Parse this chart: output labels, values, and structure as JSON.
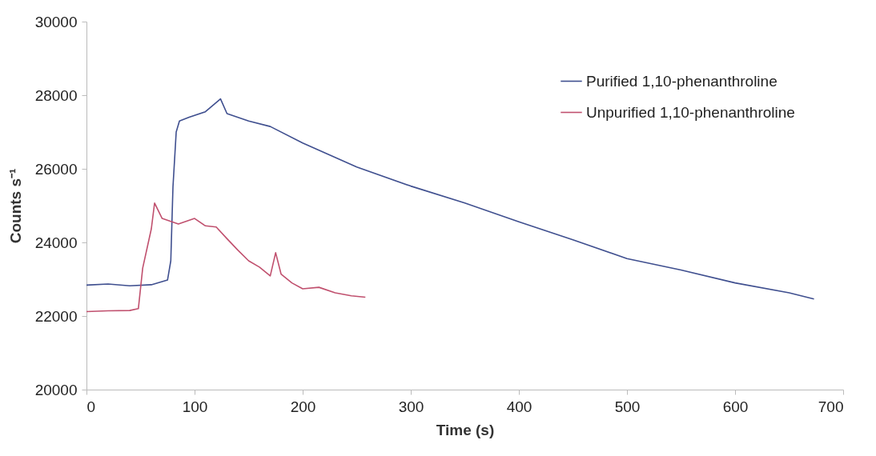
{
  "chart_data": {
    "type": "line",
    "xlabel": "Time (s)",
    "ylabel": "Counts s⁻¹",
    "xlim": [
      0,
      700
    ],
    "xticks": [
      0,
      100,
      200,
      300,
      400,
      500,
      600,
      700
    ],
    "ylim": [
      20000,
      30000
    ],
    "yticks": [
      20000,
      22000,
      24000,
      26000,
      28000,
      30000
    ],
    "grid": false,
    "legend": "top right",
    "marker": "none",
    "line_style": "solid",
    "series": [
      {
        "name": "Purified 1,10-phenanthroline",
        "color": "#3f4f8f",
        "x": [
          0,
          20,
          40,
          60,
          75,
          78,
          80,
          83,
          86,
          95,
          110,
          124,
          130,
          150,
          170,
          200,
          250,
          300,
          350,
          400,
          450,
          500,
          550,
          600,
          650,
          673
        ],
        "values": [
          22840,
          22870,
          22820,
          22850,
          22980,
          23500,
          25500,
          27000,
          27300,
          27400,
          27550,
          27900,
          27500,
          27300,
          27150,
          26700,
          26050,
          25530,
          25070,
          24560,
          24070,
          23560,
          23250,
          22900,
          22630,
          22460
        ]
      },
      {
        "name": "Unpurified 1,10-phenanthroline",
        "color": "#c0506e",
        "x": [
          0,
          20,
          40,
          48,
          52,
          60,
          63,
          70,
          85,
          100,
          110,
          120,
          130,
          140,
          150,
          160,
          170,
          175,
          180,
          190,
          200,
          215,
          230,
          245,
          258
        ],
        "values": [
          22120,
          22140,
          22150,
          22200,
          23300,
          24370,
          25070,
          24650,
          24500,
          24650,
          24450,
          24420,
          24100,
          23790,
          23500,
          23330,
          23090,
          23720,
          23140,
          22900,
          22740,
          22780,
          22630,
          22550,
          22510
        ]
      }
    ]
  }
}
